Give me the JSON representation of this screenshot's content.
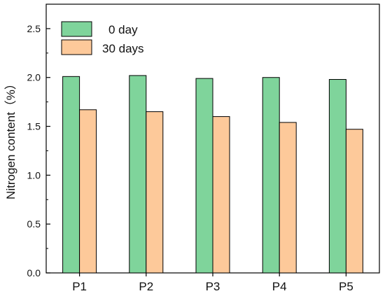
{
  "chart_data": {
    "type": "bar",
    "ylabel": "Nitrogen content（%）",
    "ylim": [
      0,
      2.75
    ],
    "yticks": [
      "0.0",
      "0.5",
      "1.0",
      "1.5",
      "2.0",
      "2.5"
    ],
    "ytick_values": [
      0,
      0.5,
      1.0,
      1.5,
      2.0,
      2.5
    ],
    "categories": [
      "P1",
      "P2",
      "P3",
      "P4",
      "P5"
    ],
    "series": [
      {
        "name": "0 day",
        "values": [
          2.01,
          2.02,
          1.99,
          2.0,
          1.98
        ],
        "color": "#7fd49b"
      },
      {
        "name": "30 days",
        "values": [
          1.67,
          1.65,
          1.6,
          1.54,
          1.47
        ],
        "color": "#fdc99a"
      }
    ],
    "legend_position": "top-left",
    "grid": false
  }
}
